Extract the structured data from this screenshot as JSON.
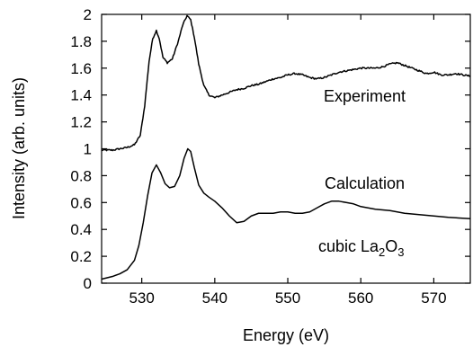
{
  "chart_data": {
    "type": "line",
    "xlabel": "Energy (eV)",
    "ylabel": "Intensity (arb. units)",
    "xlim": [
      524.5,
      575
    ],
    "ylim": [
      0,
      2
    ],
    "grid": false,
    "x_ticks": [
      530,
      540,
      550,
      560,
      570
    ],
    "y_ticks": [
      0,
      0.2,
      0.4,
      0.6,
      0.8,
      1,
      1.2,
      1.4,
      1.6,
      1.8,
      2
    ],
    "y_tick_labels": [
      "0",
      "0.2",
      "0.4",
      "0.6",
      "0.8",
      "1",
      "1.2",
      "1.4",
      "1.6",
      "1.8",
      "2"
    ],
    "annotations": {
      "experiment": "Experiment",
      "calculation": "Calculation",
      "compound_prefix": "cubic La",
      "compound_sub1": "2",
      "compound_mid": "O",
      "compound_sub2": "3"
    },
    "series": [
      {
        "name": "Experiment",
        "noise": 0.006,
        "x": [
          524.5,
          526,
          527,
          528,
          529,
          529.8,
          530.4,
          531,
          531.5,
          532,
          532.4,
          532.9,
          533.5,
          534.2,
          535,
          535.6,
          536.2,
          536.7,
          537.2,
          537.8,
          538.5,
          539.2,
          540,
          541,
          542,
          543,
          544,
          545,
          546,
          547,
          548,
          549,
          550,
          551,
          552,
          553,
          554,
          555,
          556,
          557,
          558,
          559,
          560,
          561,
          562,
          563,
          564,
          565,
          566,
          567,
          568,
          569,
          570,
          571,
          572,
          573,
          574,
          575
        ],
        "y": [
          0.99,
          0.99,
          1.0,
          1.01,
          1.03,
          1.1,
          1.32,
          1.65,
          1.82,
          1.88,
          1.82,
          1.68,
          1.64,
          1.67,
          1.8,
          1.92,
          1.99,
          1.96,
          1.83,
          1.63,
          1.47,
          1.4,
          1.38,
          1.4,
          1.42,
          1.44,
          1.45,
          1.47,
          1.48,
          1.5,
          1.52,
          1.53,
          1.55,
          1.56,
          1.55,
          1.53,
          1.52,
          1.53,
          1.55,
          1.57,
          1.58,
          1.59,
          1.6,
          1.6,
          1.6,
          1.61,
          1.63,
          1.64,
          1.62,
          1.6,
          1.58,
          1.56,
          1.57,
          1.55,
          1.55,
          1.56,
          1.55,
          1.54
        ]
      },
      {
        "name": "Calculation",
        "noise": 0,
        "x": [
          524.5,
          526,
          527,
          528,
          529,
          529.6,
          530.2,
          530.8,
          531.4,
          532,
          532.6,
          533.2,
          533.8,
          534.5,
          535.2,
          535.8,
          536.3,
          536.7,
          537.2,
          537.8,
          538.5,
          539.2,
          540,
          541,
          542,
          543,
          544,
          545,
          546,
          547,
          548,
          549,
          550,
          551,
          552,
          553,
          554,
          555,
          556,
          557,
          558,
          559,
          560,
          561,
          562,
          564,
          566,
          568,
          570,
          572,
          575
        ],
        "y": [
          0.03,
          0.05,
          0.07,
          0.1,
          0.17,
          0.28,
          0.45,
          0.65,
          0.82,
          0.88,
          0.82,
          0.74,
          0.71,
          0.72,
          0.8,
          0.93,
          1.0,
          0.98,
          0.86,
          0.73,
          0.67,
          0.64,
          0.61,
          0.56,
          0.5,
          0.45,
          0.46,
          0.5,
          0.52,
          0.52,
          0.52,
          0.53,
          0.53,
          0.52,
          0.52,
          0.53,
          0.56,
          0.59,
          0.61,
          0.61,
          0.6,
          0.59,
          0.57,
          0.56,
          0.55,
          0.54,
          0.52,
          0.51,
          0.5,
          0.49,
          0.48
        ]
      }
    ]
  }
}
